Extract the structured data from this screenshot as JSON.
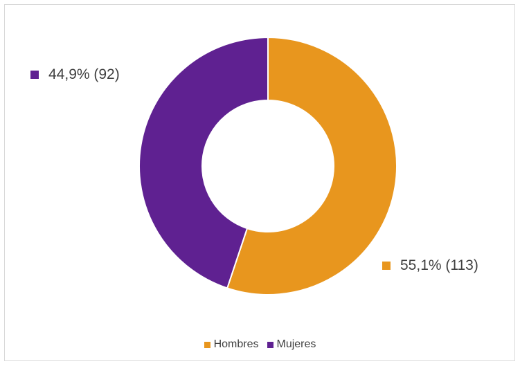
{
  "chart_data": {
    "type": "pie",
    "variant": "donut",
    "title": "",
    "categories": [
      "Hombres",
      "Mujeres"
    ],
    "values": [
      113,
      92
    ],
    "percent_labels": [
      "55,1%",
      "44,9%"
    ],
    "data_labels": [
      "55,1% (113)",
      "44,9% (92)"
    ],
    "colors": [
      "#E8961E",
      "#5F2191"
    ],
    "legend_position": "bottom",
    "start_angle": "top, clockwise"
  }
}
